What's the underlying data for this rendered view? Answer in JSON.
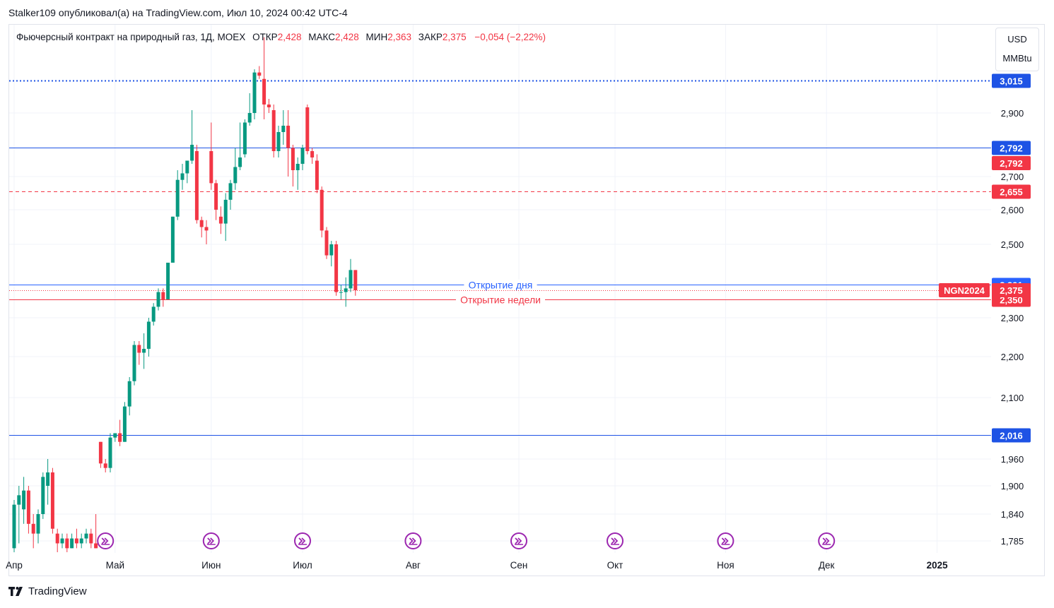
{
  "header": {
    "published_line": "Stalker109 опубликовал(а) на TradingView.com, Июл 10, 2024 00:42 UTC-4"
  },
  "legend": {
    "symbol_line": "Фьючерсный контракт на природный газ, 1Д, MOEX",
    "open_label": "ОТКР",
    "open_value": "2,428",
    "high_label": "МАКС",
    "high_value": "2,428",
    "low_label": "МИН",
    "low_value": "2,363",
    "close_label": "ЗАКР",
    "close_value": "2,375",
    "change_value": "−0,054 (−2,22%)"
  },
  "units": {
    "currency": "USD",
    "measure": "MMBtu"
  },
  "footer": {
    "brand": "TradingView"
  },
  "colors": {
    "up": "#089981",
    "down": "#f23645",
    "blue_line": "#2962ff",
    "dark_blue_line": "#1e53e5",
    "grid": "#f0f3fa",
    "axis_text": "#131722"
  },
  "chart_data": {
    "type": "candlestick",
    "y_ticks": [
      {
        "v": 1.785,
        "label": "1,785"
      },
      {
        "v": 1.84,
        "label": "1,840"
      },
      {
        "v": 1.9,
        "label": "1,900"
      },
      {
        "v": 1.96,
        "label": "1,960"
      },
      {
        "v": 2.1,
        "label": "2,100"
      },
      {
        "v": 2.2,
        "label": "2,200"
      },
      {
        "v": 2.3,
        "label": "2,300"
      },
      {
        "v": 2.5,
        "label": "2,500"
      },
      {
        "v": 2.6,
        "label": "2,600"
      },
      {
        "v": 2.7,
        "label": "2,700"
      },
      {
        "v": 2.9,
        "label": "2,900"
      }
    ],
    "x_ticks": [
      {
        "i": 0,
        "label": "Апр"
      },
      {
        "i": 21,
        "label": "Май"
      },
      {
        "i": 41,
        "label": "Июн"
      },
      {
        "i": 60,
        "label": "Июл"
      },
      {
        "i": 83,
        "label": "Авг"
      },
      {
        "i": 105,
        "label": "Сен"
      },
      {
        "i": 125,
        "label": "Окт"
      },
      {
        "i": 148,
        "label": "Ноя"
      },
      {
        "i": 169,
        "label": "Дек"
      },
      {
        "i": 192,
        "label": "2025"
      }
    ],
    "candles": [
      {
        "o": 1.77,
        "h": 1.87,
        "l": 1.76,
        "c": 1.86
      },
      {
        "o": 1.86,
        "h": 1.9,
        "l": 1.78,
        "c": 1.88
      },
      {
        "o": 1.85,
        "h": 1.92,
        "l": 1.82,
        "c": 1.89
      },
      {
        "o": 1.89,
        "h": 1.9,
        "l": 1.8,
        "c": 1.82
      },
      {
        "o": 1.82,
        "h": 1.84,
        "l": 1.77,
        "c": 1.8
      },
      {
        "o": 1.8,
        "h": 1.85,
        "l": 1.78,
        "c": 1.84
      },
      {
        "o": 1.84,
        "h": 1.93,
        "l": 1.83,
        "c": 1.92
      },
      {
        "o": 1.9,
        "h": 1.96,
        "l": 1.86,
        "c": 1.93
      },
      {
        "o": 1.93,
        "h": 1.94,
        "l": 1.8,
        "c": 1.81
      },
      {
        "o": 1.8,
        "h": 1.81,
        "l": 1.76,
        "c": 1.78
      },
      {
        "o": 1.78,
        "h": 1.8,
        "l": 1.77,
        "c": 1.79
      },
      {
        "o": 1.79,
        "h": 1.8,
        "l": 1.76,
        "c": 1.77
      },
      {
        "o": 1.77,
        "h": 1.8,
        "l": 1.77,
        "c": 1.79
      },
      {
        "o": 1.79,
        "h": 1.81,
        "l": 1.77,
        "c": 1.78
      },
      {
        "o": 1.78,
        "h": 1.8,
        "l": 1.77,
        "c": 1.79
      },
      {
        "o": 1.79,
        "h": 1.81,
        "l": 1.78,
        "c": 1.8
      },
      {
        "o": 1.8,
        "h": 1.81,
        "l": 1.77,
        "c": 1.78
      },
      {
        "o": 1.78,
        "h": 1.84,
        "l": 1.77,
        "c": 1.77
      },
      {
        "o": 2.0,
        "h": 2.0,
        "l": 1.94,
        "c": 1.95
      },
      {
        "o": 1.95,
        "h": 1.96,
        "l": 1.93,
        "c": 1.94
      },
      {
        "o": 1.94,
        "h": 2.02,
        "l": 1.93,
        "c": 2.01
      },
      {
        "o": 2.01,
        "h": 2.02,
        "l": 2.0,
        "c": 2.02
      },
      {
        "o": 2.02,
        "h": 2.05,
        "l": 1.99,
        "c": 2.0
      },
      {
        "o": 2.0,
        "h": 2.09,
        "l": 2.0,
        "c": 2.08
      },
      {
        "o": 2.08,
        "h": 2.15,
        "l": 2.06,
        "c": 2.14
      },
      {
        "o": 2.14,
        "h": 2.24,
        "l": 2.13,
        "c": 2.23
      },
      {
        "o": 2.23,
        "h": 2.24,
        "l": 2.18,
        "c": 2.21
      },
      {
        "o": 2.21,
        "h": 2.26,
        "l": 2.17,
        "c": 2.22
      },
      {
        "o": 2.22,
        "h": 2.3,
        "l": 2.2,
        "c": 2.29
      },
      {
        "o": 2.29,
        "h": 2.34,
        "l": 2.28,
        "c": 2.33
      },
      {
        "o": 2.33,
        "h": 2.38,
        "l": 2.32,
        "c": 2.37
      },
      {
        "o": 2.37,
        "h": 2.38,
        "l": 2.33,
        "c": 2.35
      },
      {
        "o": 2.35,
        "h": 2.45,
        "l": 2.35,
        "c": 2.45
      },
      {
        "o": 2.45,
        "h": 2.58,
        "l": 2.45,
        "c": 2.58
      },
      {
        "o": 2.58,
        "h": 2.72,
        "l": 2.57,
        "c": 2.69
      },
      {
        "o": 2.69,
        "h": 2.74,
        "l": 2.66,
        "c": 2.71
      },
      {
        "o": 2.71,
        "h": 2.75,
        "l": 2.68,
        "c": 2.75
      },
      {
        "o": 2.75,
        "h": 2.91,
        "l": 2.74,
        "c": 2.8
      },
      {
        "o": 2.78,
        "h": 2.8,
        "l": 2.56,
        "c": 2.57
      },
      {
        "o": 2.57,
        "h": 2.58,
        "l": 2.52,
        "c": 2.55
      },
      {
        "o": 2.55,
        "h": 2.57,
        "l": 2.5,
        "c": 2.54
      },
      {
        "o": 2.78,
        "h": 2.87,
        "l": 2.66,
        "c": 2.68
      },
      {
        "o": 2.68,
        "h": 2.69,
        "l": 2.57,
        "c": 2.6
      },
      {
        "o": 2.58,
        "h": 2.61,
        "l": 2.53,
        "c": 2.56
      },
      {
        "o": 2.56,
        "h": 2.65,
        "l": 2.51,
        "c": 2.63
      },
      {
        "o": 2.63,
        "h": 2.69,
        "l": 2.6,
        "c": 2.68
      },
      {
        "o": 2.68,
        "h": 2.79,
        "l": 2.66,
        "c": 2.73
      },
      {
        "o": 2.73,
        "h": 2.87,
        "l": 2.72,
        "c": 2.76
      },
      {
        "o": 2.77,
        "h": 2.88,
        "l": 2.76,
        "c": 2.87
      },
      {
        "o": 2.87,
        "h": 2.97,
        "l": 2.86,
        "c": 2.9
      },
      {
        "o": 2.9,
        "h": 3.05,
        "l": 2.88,
        "c": 3.04
      },
      {
        "o": 3.04,
        "h": 3.06,
        "l": 3.02,
        "c": 3.03
      },
      {
        "o": 3.02,
        "h": 3.15,
        "l": 2.88,
        "c": 2.93
      },
      {
        "o": 2.93,
        "h": 2.95,
        "l": 2.9,
        "c": 2.92
      },
      {
        "o": 2.91,
        "h": 2.93,
        "l": 2.76,
        "c": 2.78
      },
      {
        "o": 2.78,
        "h": 2.86,
        "l": 2.76,
        "c": 2.84
      },
      {
        "o": 2.84,
        "h": 2.91,
        "l": 2.8,
        "c": 2.86
      },
      {
        "o": 2.86,
        "h": 2.91,
        "l": 2.7,
        "c": 2.79
      },
      {
        "o": 2.79,
        "h": 2.8,
        "l": 2.67,
        "c": 2.72
      },
      {
        "o": 2.72,
        "h": 2.76,
        "l": 2.66,
        "c": 2.74
      },
      {
        "o": 2.74,
        "h": 2.8,
        "l": 2.72,
        "c": 2.79
      },
      {
        "o": 2.92,
        "h": 2.93,
        "l": 2.77,
        "c": 2.78
      },
      {
        "o": 2.78,
        "h": 2.79,
        "l": 2.74,
        "c": 2.76
      },
      {
        "o": 2.75,
        "h": 2.77,
        "l": 2.65,
        "c": 2.66
      },
      {
        "o": 2.66,
        "h": 2.67,
        "l": 2.52,
        "c": 2.54
      },
      {
        "o": 2.54,
        "h": 2.55,
        "l": 2.46,
        "c": 2.47
      },
      {
        "o": 2.47,
        "h": 2.51,
        "l": 2.44,
        "c": 2.5
      },
      {
        "o": 2.5,
        "h": 2.51,
        "l": 2.36,
        "c": 2.37
      },
      {
        "o": 2.37,
        "h": 2.39,
        "l": 2.35,
        "c": 2.37
      },
      {
        "o": 2.37,
        "h": 2.41,
        "l": 2.33,
        "c": 2.38
      },
      {
        "o": 2.38,
        "h": 2.46,
        "l": 2.37,
        "c": 2.43
      },
      {
        "o": 2.43,
        "h": 2.43,
        "l": 2.36,
        "c": 2.375
      }
    ],
    "levels": [
      {
        "price": 3.015,
        "label": "3,015",
        "style": "dotted",
        "color": "#1e53e5",
        "text": ""
      },
      {
        "price": 2.792,
        "label": "2,792",
        "style": "solid",
        "color": "#1e53e5",
        "text": ""
      },
      {
        "price": 2.655,
        "label": "2,655",
        "style": "dashed",
        "color": "#f23645",
        "text": ""
      },
      {
        "price": 2.391,
        "label": "2,391",
        "style": "solid",
        "color": "#2962ff",
        "text": "Открытие дня"
      },
      {
        "price": 2.35,
        "label": "2,350",
        "style": "solid",
        "color": "#f23645",
        "text": "Открытие недели"
      },
      {
        "price": 2.016,
        "label": "2,016",
        "style": "solid",
        "color": "#1e53e5",
        "text": ""
      }
    ],
    "price_tags": [
      {
        "price": 2.792,
        "label": "2,792",
        "bg": "#f23645"
      },
      {
        "price": 2.375,
        "label": "2,375",
        "bg": "#f23645",
        "symbol": "NGN2024"
      }
    ],
    "event_markers_x": [
      19,
      41,
      60,
      83,
      105,
      125,
      148,
      169
    ]
  }
}
